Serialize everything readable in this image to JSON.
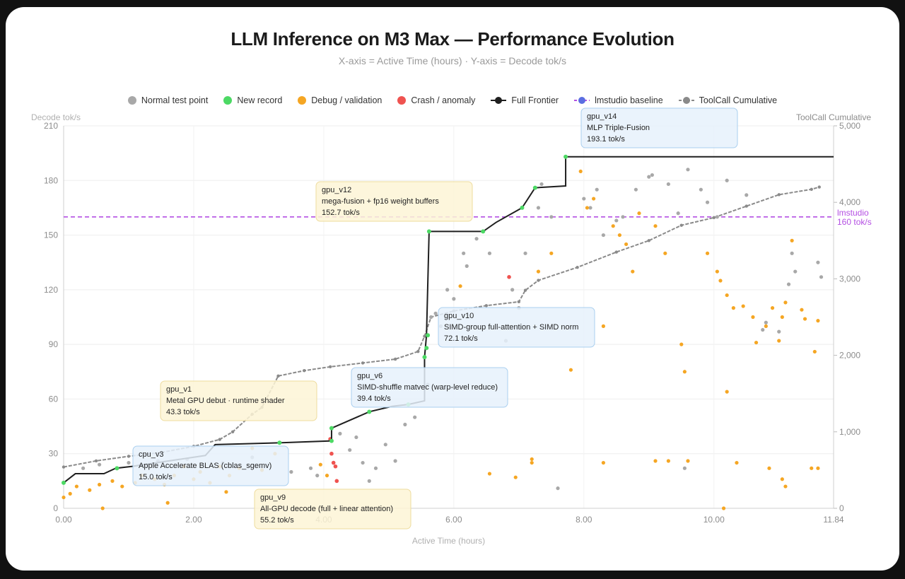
{
  "title": "LLM Inference on M3 Max — Performance Evolution",
  "subtitle": "X-axis = Active Time (hours) · Y-axis = Decode tok/s",
  "colors": {
    "normal": "#a8a8a8",
    "record": "#4cd964",
    "debug": "#f5a623",
    "crash": "#ef5350",
    "frontier": "#1f1f1f",
    "baseline": "#b44fe3",
    "baseline_legend": "#5b6ee1",
    "cumulative": "#8a8a8a",
    "box_blue_fill": "#e6f1fb",
    "box_blue_stroke": "#a9cfef",
    "box_yellow_fill": "#fdf4d6",
    "box_yellow_stroke": "#eedc9e"
  },
  "legend": [
    {
      "label": "Normal test point",
      "kind": "dot",
      "color": "#a8a8a8"
    },
    {
      "label": "New record",
      "kind": "dot",
      "color": "#4cd964"
    },
    {
      "label": "Debug / validation",
      "kind": "dot",
      "color": "#f5a623"
    },
    {
      "label": "Crash / anomaly",
      "kind": "dot",
      "color": "#ef5350"
    },
    {
      "label": "Full Frontier",
      "kind": "line",
      "color": "#1f1f1f"
    },
    {
      "label": "lmstudio baseline",
      "kind": "dash",
      "color": "#5b6ee1"
    },
    {
      "label": "ToolCall Cumulative",
      "kind": "line",
      "color": "#8a8a8a"
    }
  ],
  "chart_data": {
    "type": "scatter",
    "title": "LLM Inference on M3 Max — Performance Evolution",
    "subtitle": "X-axis = Active Time (hours) · Y-axis = Decode tok/s",
    "xlabel": "Active Time (hours)",
    "ylabel": "Decode tok/s",
    "y2label": "ToolCall Cumulative",
    "xlim": [
      0,
      11.84
    ],
    "ylim": [
      0,
      210
    ],
    "y2lim": [
      0,
      5000
    ],
    "x_ticks": [
      "0.00",
      "2.00",
      "4.00",
      "6.00",
      "8.00",
      "10.00",
      "11.84"
    ],
    "y_ticks": [
      "0",
      "30",
      "60",
      "90",
      "120",
      "150",
      "180",
      "210"
    ],
    "y2_ticks": [
      "0",
      "1,000",
      "2,000",
      "3,000",
      "4,000",
      "5,000"
    ],
    "grid": true,
    "legend_position": "top",
    "baseline": {
      "name": "lmstudio baseline",
      "value": 160,
      "label_lines": [
        "lmstudio",
        "160 tok/s"
      ]
    },
    "frontier": {
      "name": "Full Frontier",
      "points": [
        [
          0,
          14
        ],
        [
          0.18,
          19
        ],
        [
          0.62,
          19
        ],
        [
          0.8,
          22
        ],
        [
          1.05,
          23
        ],
        [
          2.18,
          29
        ],
        [
          2.33,
          35
        ],
        [
          3.35,
          36
        ],
        [
          4.12,
          37
        ],
        [
          4.12,
          44
        ],
        [
          4.7,
          53
        ],
        [
          5.05,
          56
        ],
        [
          5.3,
          57
        ],
        [
          5.55,
          59
        ],
        [
          5.55,
          83
        ],
        [
          5.58,
          95
        ],
        [
          5.62,
          152
        ],
        [
          6.45,
          152
        ],
        [
          6.65,
          157
        ],
        [
          7.05,
          165
        ],
        [
          7.25,
          176
        ],
        [
          7.72,
          177
        ],
        [
          7.72,
          193
        ],
        [
          11.84,
          193
        ]
      ]
    },
    "records": [
      [
        0,
        14
      ],
      [
        0.82,
        22
      ],
      [
        3.32,
        36
      ],
      [
        4.12,
        37
      ],
      [
        4.12,
        44
      ],
      [
        4.7,
        53
      ],
      [
        5.3,
        57
      ],
      [
        5.55,
        83
      ],
      [
        5.58,
        88
      ],
      [
        5.6,
        95
      ],
      [
        5.62,
        152
      ],
      [
        6.45,
        152
      ],
      [
        7.05,
        165
      ],
      [
        7.25,
        176
      ],
      [
        7.72,
        193
      ]
    ],
    "normal": [
      [
        0.3,
        22
      ],
      [
        0.55,
        24
      ],
      [
        1.0,
        25
      ],
      [
        1.45,
        26
      ],
      [
        1.9,
        27
      ],
      [
        2.45,
        25
      ],
      [
        2.9,
        28
      ],
      [
        3.5,
        20
      ],
      [
        3.8,
        22
      ],
      [
        3.9,
        18
      ],
      [
        4.25,
        41
      ],
      [
        4.4,
        32
      ],
      [
        4.5,
        39
      ],
      [
        4.6,
        25
      ],
      [
        4.7,
        15
      ],
      [
        4.8,
        22
      ],
      [
        4.95,
        35
      ],
      [
        5.1,
        26
      ],
      [
        5.25,
        46
      ],
      [
        5.4,
        50
      ],
      [
        5.6,
        68
      ],
      [
        5.65,
        105
      ],
      [
        5.72,
        107
      ],
      [
        5.9,
        120
      ],
      [
        6.0,
        115
      ],
      [
        6.2,
        133
      ],
      [
        6.35,
        148
      ],
      [
        6.55,
        140
      ],
      [
        6.9,
        120
      ],
      [
        7.0,
        110
      ],
      [
        7.1,
        140
      ],
      [
        7.3,
        165
      ],
      [
        7.35,
        178
      ],
      [
        7.5,
        160
      ],
      [
        7.6,
        11
      ],
      [
        8.0,
        170
      ],
      [
        8.1,
        165
      ],
      [
        8.2,
        175
      ],
      [
        8.3,
        150
      ],
      [
        8.5,
        158
      ],
      [
        8.6,
        160
      ],
      [
        8.8,
        175
      ],
      [
        9.0,
        182
      ],
      [
        9.05,
        183
      ],
      [
        9.3,
        178
      ],
      [
        9.45,
        162
      ],
      [
        9.6,
        186
      ],
      [
        9.8,
        175
      ],
      [
        9.9,
        168
      ],
      [
        10.05,
        160
      ],
      [
        10.2,
        180
      ],
      [
        10.5,
        172
      ],
      [
        10.75,
        98
      ],
      [
        10.8,
        102
      ],
      [
        11.0,
        97
      ],
      [
        11.15,
        123
      ],
      [
        11.2,
        140
      ],
      [
        11.25,
        130
      ],
      [
        11.6,
        135
      ],
      [
        11.65,
        127
      ],
      [
        9.55,
        22
      ],
      [
        6.8,
        92
      ],
      [
        6.15,
        140
      ],
      [
        5.8,
        100
      ]
    ],
    "debug": [
      [
        0,
        6
      ],
      [
        0.1,
        8
      ],
      [
        0.2,
        12
      ],
      [
        0.4,
        10
      ],
      [
        0.55,
        13
      ],
      [
        0.75,
        15
      ],
      [
        0.9,
        12
      ],
      [
        1.1,
        14
      ],
      [
        1.2,
        18
      ],
      [
        1.4,
        16
      ],
      [
        1.55,
        13
      ],
      [
        1.7,
        18
      ],
      [
        1.85,
        23
      ],
      [
        2.0,
        16
      ],
      [
        2.1,
        20
      ],
      [
        2.25,
        14
      ],
      [
        2.4,
        23
      ],
      [
        2.55,
        18
      ],
      [
        2.7,
        22
      ],
      [
        2.9,
        33
      ],
      [
        3.05,
        21
      ],
      [
        3.25,
        30
      ],
      [
        2.5,
        9
      ],
      [
        1.6,
        3
      ],
      [
        0.6,
        0
      ],
      [
        3.95,
        24
      ],
      [
        4.05,
        18
      ],
      [
        6.1,
        122
      ],
      [
        6.55,
        19
      ],
      [
        6.95,
        17
      ],
      [
        7.2,
        27
      ],
      [
        7.3,
        130
      ],
      [
        7.5,
        140
      ],
      [
        7.8,
        76
      ],
      [
        7.95,
        185
      ],
      [
        8.05,
        165
      ],
      [
        8.15,
        170
      ],
      [
        8.3,
        100
      ],
      [
        8.45,
        155
      ],
      [
        8.55,
        150
      ],
      [
        8.65,
        145
      ],
      [
        8.75,
        130
      ],
      [
        8.85,
        162
      ],
      [
        9.1,
        155
      ],
      [
        9.25,
        140
      ],
      [
        9.5,
        90
      ],
      [
        9.55,
        75
      ],
      [
        9.9,
        140
      ],
      [
        10.05,
        130
      ],
      [
        10.1,
        125
      ],
      [
        10.2,
        117
      ],
      [
        10.3,
        110
      ],
      [
        10.45,
        111
      ],
      [
        10.6,
        105
      ],
      [
        10.65,
        91
      ],
      [
        10.8,
        100
      ],
      [
        10.9,
        110
      ],
      [
        11.0,
        92
      ],
      [
        11.05,
        105
      ],
      [
        11.1,
        113
      ],
      [
        11.2,
        147
      ],
      [
        11.35,
        109
      ],
      [
        11.4,
        104
      ],
      [
        11.55,
        86
      ],
      [
        11.6,
        103
      ],
      [
        10.15,
        0
      ],
      [
        10.2,
        64
      ],
      [
        10.35,
        25
      ],
      [
        9.1,
        26
      ],
      [
        9.3,
        26
      ],
      [
        9.6,
        26
      ],
      [
        7.2,
        25
      ],
      [
        8.3,
        25
      ],
      [
        10.85,
        22
      ],
      [
        11.6,
        22
      ],
      [
        11.05,
        16
      ],
      [
        11.1,
        12
      ],
      [
        11.5,
        22
      ]
    ],
    "crash": [
      [
        4.1,
        38
      ],
      [
        4.12,
        30
      ],
      [
        4.15,
        25
      ],
      [
        4.18,
        23
      ],
      [
        4.2,
        15
      ],
      [
        6.85,
        127
      ]
    ],
    "cumulative": {
      "name": "ToolCall Cumulative",
      "points": [
        [
          0,
          540
        ],
        [
          0.5,
          620
        ],
        [
          1.0,
          680
        ],
        [
          1.5,
          730
        ],
        [
          2.0,
          810
        ],
        [
          2.4,
          900
        ],
        [
          2.6,
          1000
        ],
        [
          2.9,
          1230
        ],
        [
          3.05,
          1320
        ],
        [
          3.3,
          1730
        ],
        [
          3.7,
          1800
        ],
        [
          4.1,
          1850
        ],
        [
          4.6,
          1900
        ],
        [
          5.1,
          1950
        ],
        [
          5.45,
          2050
        ],
        [
          5.55,
          2250
        ],
        [
          5.65,
          2500
        ],
        [
          6.0,
          2580
        ],
        [
          6.5,
          2650
        ],
        [
          7.0,
          2700
        ],
        [
          7.1,
          2850
        ],
        [
          7.3,
          2980
        ],
        [
          7.9,
          3150
        ],
        [
          8.5,
          3350
        ],
        [
          9.0,
          3500
        ],
        [
          9.5,
          3700
        ],
        [
          10.0,
          3800
        ],
        [
          10.5,
          3950
        ],
        [
          11.0,
          4100
        ],
        [
          11.5,
          4170
        ],
        [
          11.62,
          4200
        ]
      ]
    },
    "annotations": [
      {
        "title": "cpu_v3",
        "desc": "Apple Accelerate BLAS (cblas_sgemv)",
        "value": "15.0 tok/s",
        "style": "blue"
      },
      {
        "title": "gpu_v1",
        "desc": "Metal GPU debut · runtime shader",
        "value": "43.3 tok/s",
        "style": "yellow"
      },
      {
        "title": "gpu_v6",
        "desc": "SIMD-shuffle matvec (warp-level reduce)",
        "value": "39.4 tok/s",
        "style": "blue"
      },
      {
        "title": "gpu_v9",
        "desc": "All-GPU decode (full + linear attention)",
        "value": "55.2 tok/s",
        "style": "yellow"
      },
      {
        "title": "gpu_v10",
        "desc": "SIMD-group full-attention + SIMD norm",
        "value": "72.1 tok/s",
        "style": "blue"
      },
      {
        "title": "gpu_v12",
        "desc": "mega-fusion + fp16 weight buffers",
        "value": "152.7 tok/s",
        "style": "yellow"
      },
      {
        "title": "gpu_v14",
        "desc": "MLP Triple-Fusion",
        "value": "193.1 tok/s",
        "style": "blue"
      }
    ]
  }
}
